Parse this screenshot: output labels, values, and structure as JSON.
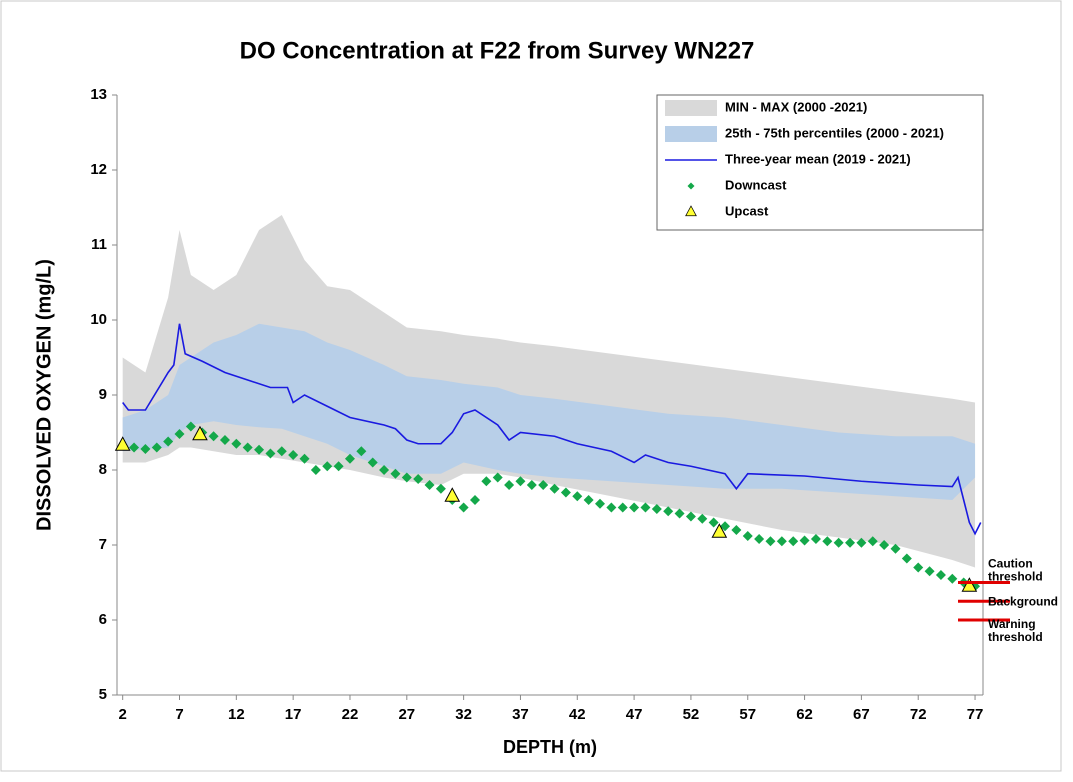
{
  "chart_data": {
    "type": "line",
    "title": "DO Concentration at F22 from Survey WN227",
    "x_label": "DEPTH (m)",
    "y_label": "DISSOLVED OXYGEN (mg/L)",
    "xlim": [
      1.5,
      77.7
    ],
    "xticks": [
      2,
      7,
      12,
      17,
      22,
      27,
      32,
      37,
      42,
      47,
      52,
      57,
      62,
      67,
      72,
      77
    ],
    "ylim": [
      5,
      13
    ],
    "yticks": [
      5,
      6,
      7,
      8,
      9,
      10,
      11,
      12,
      13
    ],
    "legend": "upper right",
    "series": [
      {
        "name": "MIN - MAX (2000 -2021)",
        "type": "band",
        "color": "#d9d9d9",
        "x": [
          2,
          4,
          6,
          7,
          8,
          10,
          12,
          14,
          16,
          18,
          20,
          22,
          25,
          27,
          30,
          32,
          35,
          37,
          40,
          45,
          50,
          55,
          60,
          65,
          70,
          75,
          77
        ],
        "low": [
          8.1,
          8.1,
          8.2,
          8.3,
          8.3,
          8.25,
          8.2,
          8.2,
          8.15,
          8.1,
          8.05,
          8.0,
          7.9,
          7.85,
          7.8,
          7.95,
          7.95,
          7.9,
          7.8,
          7.65,
          7.5,
          7.35,
          7.2,
          7.1,
          7.0,
          6.8,
          6.7
        ],
        "high": [
          9.5,
          9.3,
          10.3,
          11.2,
          10.6,
          10.4,
          10.6,
          11.2,
          11.4,
          10.8,
          10.45,
          10.4,
          10.1,
          9.9,
          9.85,
          9.8,
          9.75,
          9.7,
          9.65,
          9.55,
          9.45,
          9.35,
          9.25,
          9.15,
          9.05,
          8.95,
          8.9
        ]
      },
      {
        "name": "25th - 75th percentiles (2000 - 2021)",
        "type": "band",
        "color": "#b8cfe8",
        "x": [
          2,
          4,
          6,
          7,
          8,
          10,
          12,
          14,
          16,
          18,
          20,
          22,
          25,
          27,
          30,
          32,
          35,
          37,
          40,
          45,
          50,
          55,
          60,
          65,
          70,
          75,
          77
        ],
        "low": [
          8.25,
          8.28,
          8.3,
          8.5,
          8.6,
          8.65,
          8.6,
          8.57,
          8.55,
          8.45,
          8.35,
          8.2,
          8.05,
          7.95,
          7.95,
          8.1,
          8.0,
          7.95,
          7.9,
          7.85,
          7.8,
          7.75,
          7.75,
          7.7,
          7.65,
          7.6,
          7.9
        ],
        "high": [
          8.7,
          8.8,
          9.0,
          9.4,
          9.5,
          9.7,
          9.8,
          9.95,
          9.9,
          9.85,
          9.7,
          9.6,
          9.4,
          9.25,
          9.2,
          9.15,
          9.1,
          9.0,
          8.95,
          8.85,
          8.75,
          8.7,
          8.6,
          8.5,
          8.45,
          8.45,
          8.35
        ]
      },
      {
        "name": "Three-year mean (2019 - 2021)",
        "type": "line",
        "color": "#1a1ae0",
        "x": [
          2,
          2.5,
          4,
          6,
          6.5,
          7,
          7.5,
          9,
          11,
          13,
          15,
          16.5,
          17,
          18,
          20,
          22,
          25,
          26,
          27,
          28,
          30,
          31,
          32,
          33,
          35,
          36,
          37,
          40,
          42,
          45,
          47,
          48,
          50,
          52,
          55,
          56,
          57,
          62,
          67,
          72,
          75,
          75.5,
          76,
          76.5,
          77,
          77.5
        ],
        "values": [
          8.9,
          8.8,
          8.8,
          9.3,
          9.4,
          9.95,
          9.55,
          9.45,
          9.3,
          9.2,
          9.1,
          9.1,
          8.9,
          9.0,
          8.85,
          8.7,
          8.6,
          8.55,
          8.4,
          8.35,
          8.35,
          8.5,
          8.75,
          8.8,
          8.6,
          8.4,
          8.5,
          8.45,
          8.35,
          8.25,
          8.1,
          8.2,
          8.1,
          8.05,
          7.95,
          7.75,
          7.95,
          7.92,
          7.85,
          7.8,
          7.78,
          7.9,
          7.6,
          7.3,
          7.15,
          7.3
        ]
      },
      {
        "name": "Downcast",
        "type": "scatter",
        "marker": "diamond",
        "color": "#14a84a",
        "x": [
          2,
          3,
          4,
          5,
          6,
          7,
          8,
          9,
          10,
          11,
          12,
          13,
          14,
          15,
          16,
          17,
          18,
          19,
          20,
          21,
          22,
          23,
          24,
          25,
          26,
          27,
          28,
          29,
          30,
          31,
          32,
          33,
          34,
          35,
          36,
          37,
          38,
          39,
          40,
          41,
          42,
          43,
          44,
          45,
          46,
          47,
          48,
          49,
          50,
          51,
          52,
          53,
          54,
          55,
          56,
          57,
          58,
          59,
          60,
          61,
          62,
          63,
          64,
          65,
          66,
          67,
          68,
          69,
          70,
          71,
          72,
          73,
          74,
          75,
          76,
          77
        ],
        "values": [
          8.33,
          8.3,
          8.28,
          8.3,
          8.38,
          8.48,
          8.58,
          8.5,
          8.45,
          8.4,
          8.35,
          8.3,
          8.27,
          8.22,
          8.25,
          8.2,
          8.15,
          8.0,
          8.05,
          8.05,
          8.15,
          8.25,
          8.1,
          8.0,
          7.95,
          7.9,
          7.88,
          7.8,
          7.75,
          7.6,
          7.5,
          7.6,
          7.85,
          7.9,
          7.8,
          7.85,
          7.8,
          7.8,
          7.75,
          7.7,
          7.65,
          7.6,
          7.55,
          7.5,
          7.5,
          7.5,
          7.5,
          7.48,
          7.45,
          7.42,
          7.38,
          7.35,
          7.3,
          7.25,
          7.2,
          7.12,
          7.08,
          7.05,
          7.05,
          7.05,
          7.06,
          7.08,
          7.05,
          7.03,
          7.03,
          7.03,
          7.05,
          7.0,
          6.95,
          6.82,
          6.7,
          6.65,
          6.6,
          6.55,
          6.5,
          6.45
        ]
      },
      {
        "name": "Upcast",
        "type": "scatter",
        "marker": "triangle",
        "color": "#ffff33",
        "x": [
          2,
          8.8,
          31,
          54.5,
          76.5
        ],
        "values": [
          8.33,
          8.47,
          7.65,
          7.17,
          6.45
        ]
      }
    ],
    "thresholds": [
      {
        "name": "Caution threshold",
        "value": 6.5,
        "color": "#e00000"
      },
      {
        "name": "Background",
        "value": 6.25,
        "color": "#e00000"
      },
      {
        "name": "Warning threshold",
        "value": 6.0,
        "color": "#e00000"
      }
    ]
  }
}
